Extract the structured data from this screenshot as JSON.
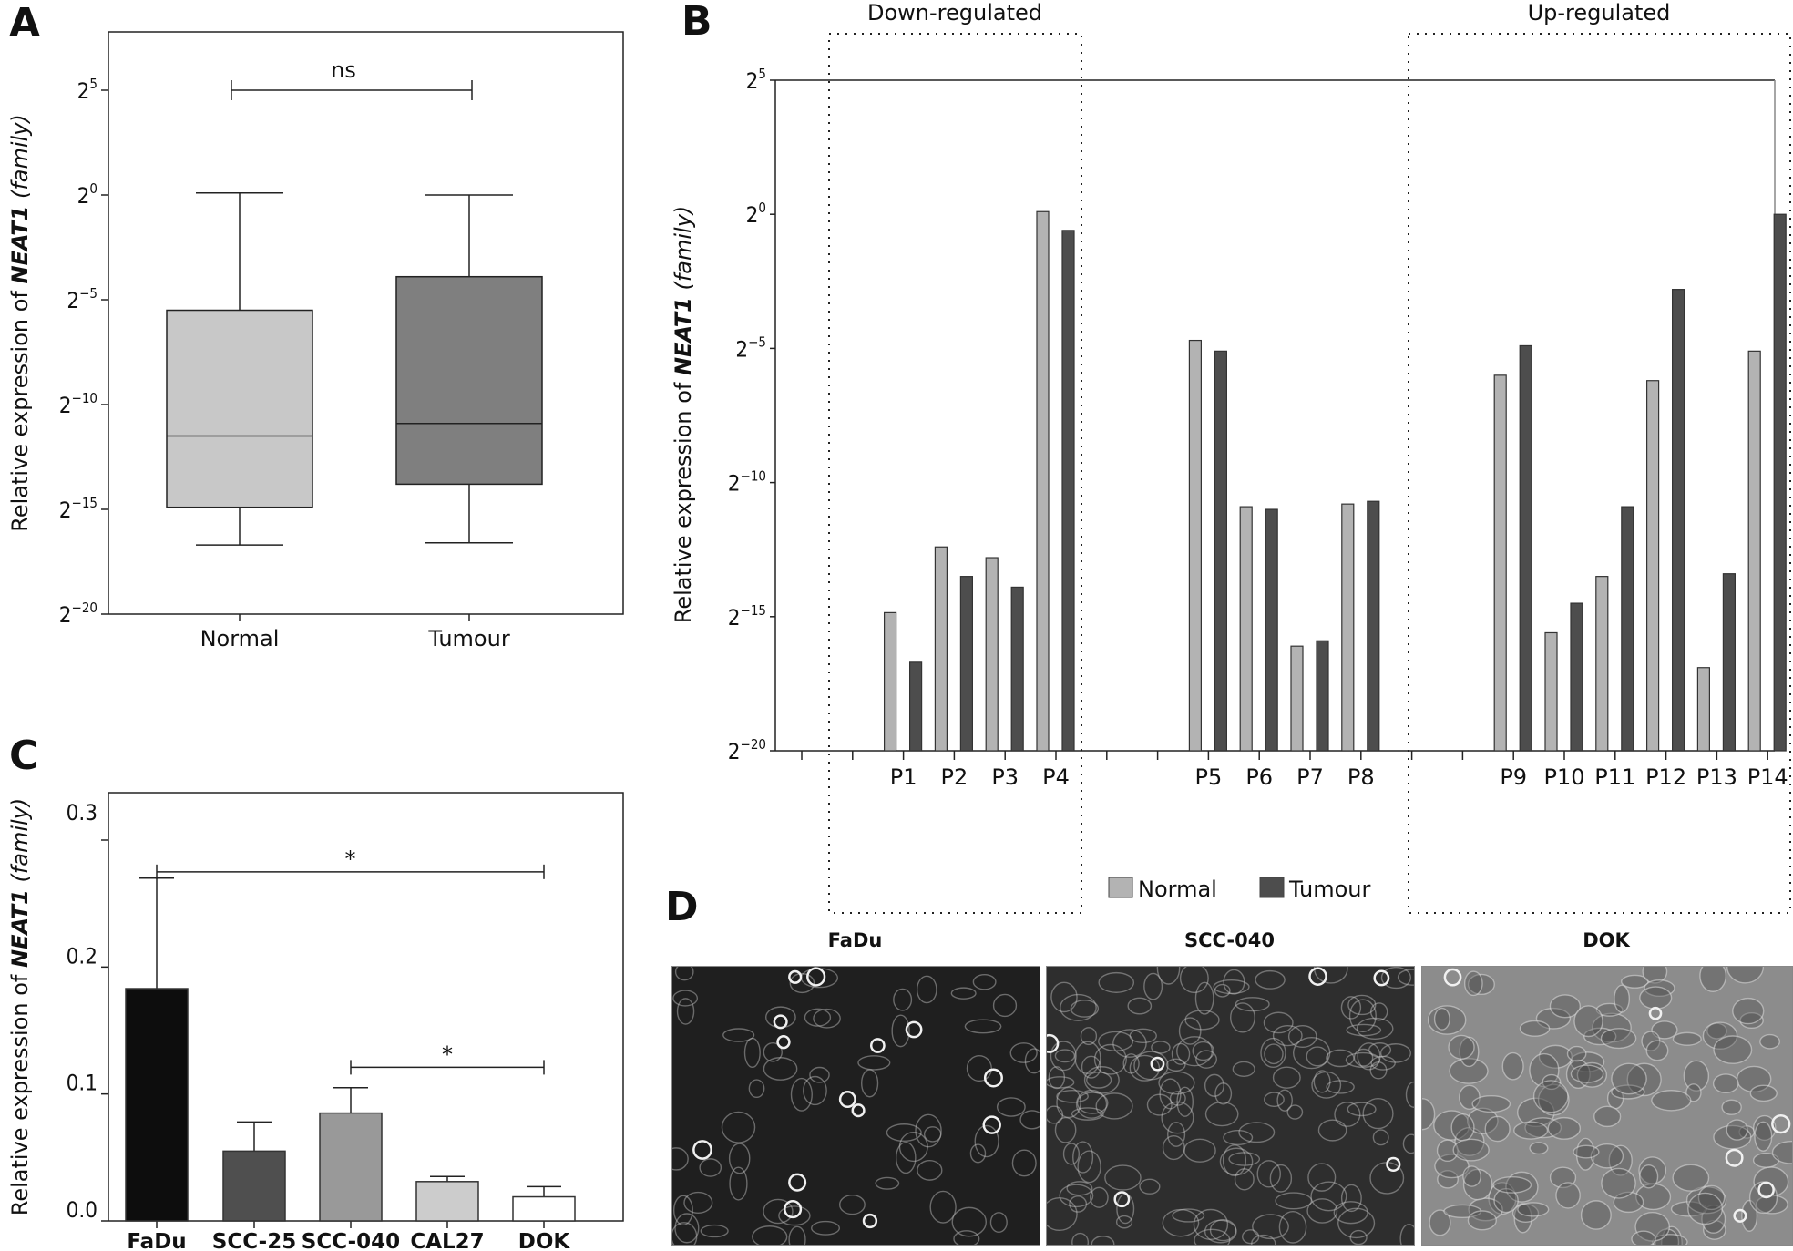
{
  "panels": {
    "A": {
      "letter": "A"
    },
    "B": {
      "letter": "B"
    },
    "C": {
      "letter": "C"
    },
    "D": {
      "letter": "D"
    }
  },
  "chart_data": [
    {
      "id": "A",
      "type": "box",
      "title": "",
      "ylabel_prefix": "Relative expression of ",
      "ylabel_gene": "NEAT1",
      "ylabel_suffix": " (family)",
      "yscale": "log2",
      "ylim_exp": [
        -20,
        6.5
      ],
      "yticks_exp": [
        5,
        0,
        -5,
        -10,
        -15,
        -20
      ],
      "categories": [
        "Normal",
        "Tumour"
      ],
      "colors": [
        "#c8c8c8",
        "#7f7f7f"
      ],
      "boxes": [
        {
          "name": "Normal",
          "whisker_low": -16.7,
          "q1": -14.9,
          "median": -11.5,
          "q3": -5.5,
          "whisker_high": 0.1
        },
        {
          "name": "Tumour",
          "whisker_low": -16.6,
          "q1": -13.8,
          "median": -10.9,
          "q3": -3.9,
          "whisker_high": 0.0
        }
      ],
      "significance": [
        {
          "from": "Normal",
          "to": "Tumour",
          "label": "ns",
          "level_exp": 5
        }
      ]
    },
    {
      "id": "B",
      "type": "bar",
      "ylabel_prefix": "Relative expression of ",
      "ylabel_gene": "NEAT1",
      "ylabel_suffix": " (family)",
      "yscale": "log2",
      "ylim_exp": [
        -20,
        5
      ],
      "yticks_exp": [
        5,
        0,
        -5,
        -10,
        -15,
        -20
      ],
      "categories": [
        "",
        "",
        "P1",
        "P2",
        "P3",
        "P4",
        "",
        "",
        "P5",
        "P6",
        "P7",
        "P8",
        "",
        "",
        "P9",
        "P10",
        "P11",
        "P12",
        "P13",
        "P14"
      ],
      "series": [
        {
          "name": "Normal",
          "color": "#b3b3b3",
          "values_exp": [
            null,
            null,
            -14.85,
            -12.4,
            -12.8,
            0.1,
            null,
            null,
            -4.7,
            -10.9,
            -16.1,
            -10.8,
            null,
            null,
            -6.0,
            -15.6,
            -13.5,
            -6.2,
            -16.9,
            -5.1
          ]
        },
        {
          "name": "Tumour",
          "color": "#4d4d4d",
          "values_exp": [
            null,
            null,
            -16.7,
            -13.5,
            -13.9,
            -0.6,
            null,
            null,
            -5.1,
            -11.0,
            -15.9,
            -10.7,
            null,
            null,
            -4.9,
            -14.5,
            -10.9,
            -2.8,
            -13.4,
            0.0
          ]
        }
      ],
      "regions": [
        {
          "label": "Down-regulated",
          "from": "P1",
          "to": "P4"
        },
        {
          "label": "Up-regulated",
          "from": "P9",
          "to": "P14"
        }
      ],
      "legend": {
        "position": "bottom-center",
        "items": [
          "Normal",
          "Tumour"
        ]
      }
    },
    {
      "id": "C",
      "type": "bar",
      "ylabel_prefix": "Relative expression of ",
      "ylabel_gene": "NEAT1",
      "ylabel_suffix": " (family)",
      "ylim": [
        0,
        0.32
      ],
      "yticks": [
        0.0,
        0.1,
        0.2,
        0.3
      ],
      "ytick_labels": [
        "0.0",
        "0.1",
        "0.2",
        "0.3"
      ],
      "categories": [
        "FaDu",
        "SCC-25",
        "SCC-040",
        "CAL27",
        "DOK"
      ],
      "values": [
        0.183,
        0.055,
        0.085,
        0.031,
        0.019
      ],
      "errors_upper": [
        0.27,
        0.078,
        0.105,
        0.035,
        0.027
      ],
      "colors": [
        "#0d0d0d",
        "#4f4f4f",
        "#999999",
        "#cccccc",
        "#ffffff"
      ],
      "significance": [
        {
          "from": "FaDu",
          "to": "DOK",
          "label": "*",
          "level": 0.275
        },
        {
          "from": "SCC-040",
          "to": "DOK",
          "label": "*",
          "level": 0.121
        }
      ]
    }
  ],
  "micrographs": [
    {
      "title": "FaDu",
      "tone": "dark"
    },
    {
      "title": "SCC-040",
      "tone": "dark"
    },
    {
      "title": "DOK",
      "tone": "light"
    }
  ]
}
